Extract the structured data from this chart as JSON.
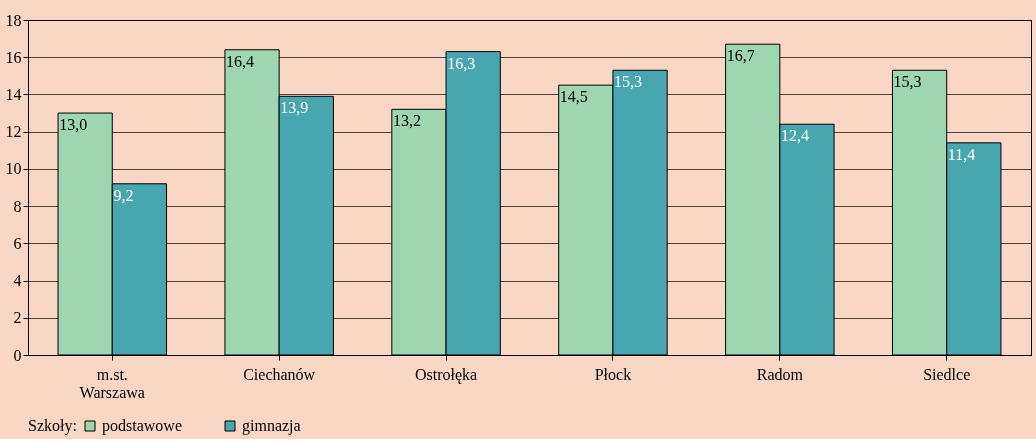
{
  "chart_data": {
    "type": "bar",
    "categories": [
      "m.st. Warszawa",
      "Ciechanów",
      "Ostrołęka",
      "Płock",
      "Radom",
      "Siedlce"
    ],
    "series": [
      {
        "name": "podstawowe",
        "color": "#9dd6b0",
        "values": [
          13.0,
          16.4,
          13.2,
          14.5,
          16.7,
          15.3
        ],
        "value_labels": [
          "13,0",
          "16,4",
          "13,2",
          "14,5",
          "16,7",
          "15,3"
        ]
      },
      {
        "name": "gimnazja",
        "color": "#48a6b0",
        "values": [
          9.2,
          13.9,
          16.3,
          15.3,
          12.4,
          11.4
        ],
        "value_labels": [
          "9,2",
          "13,9",
          "16,3",
          "15,3",
          "12,4",
          "11,4"
        ]
      }
    ],
    "legend_title": "Szkoły:",
    "legend": "bottom",
    "grid": "y",
    "ylim": [
      0,
      18
    ],
    "yticks": [
      0,
      2,
      4,
      6,
      8,
      10,
      12,
      14,
      16,
      18
    ]
  }
}
